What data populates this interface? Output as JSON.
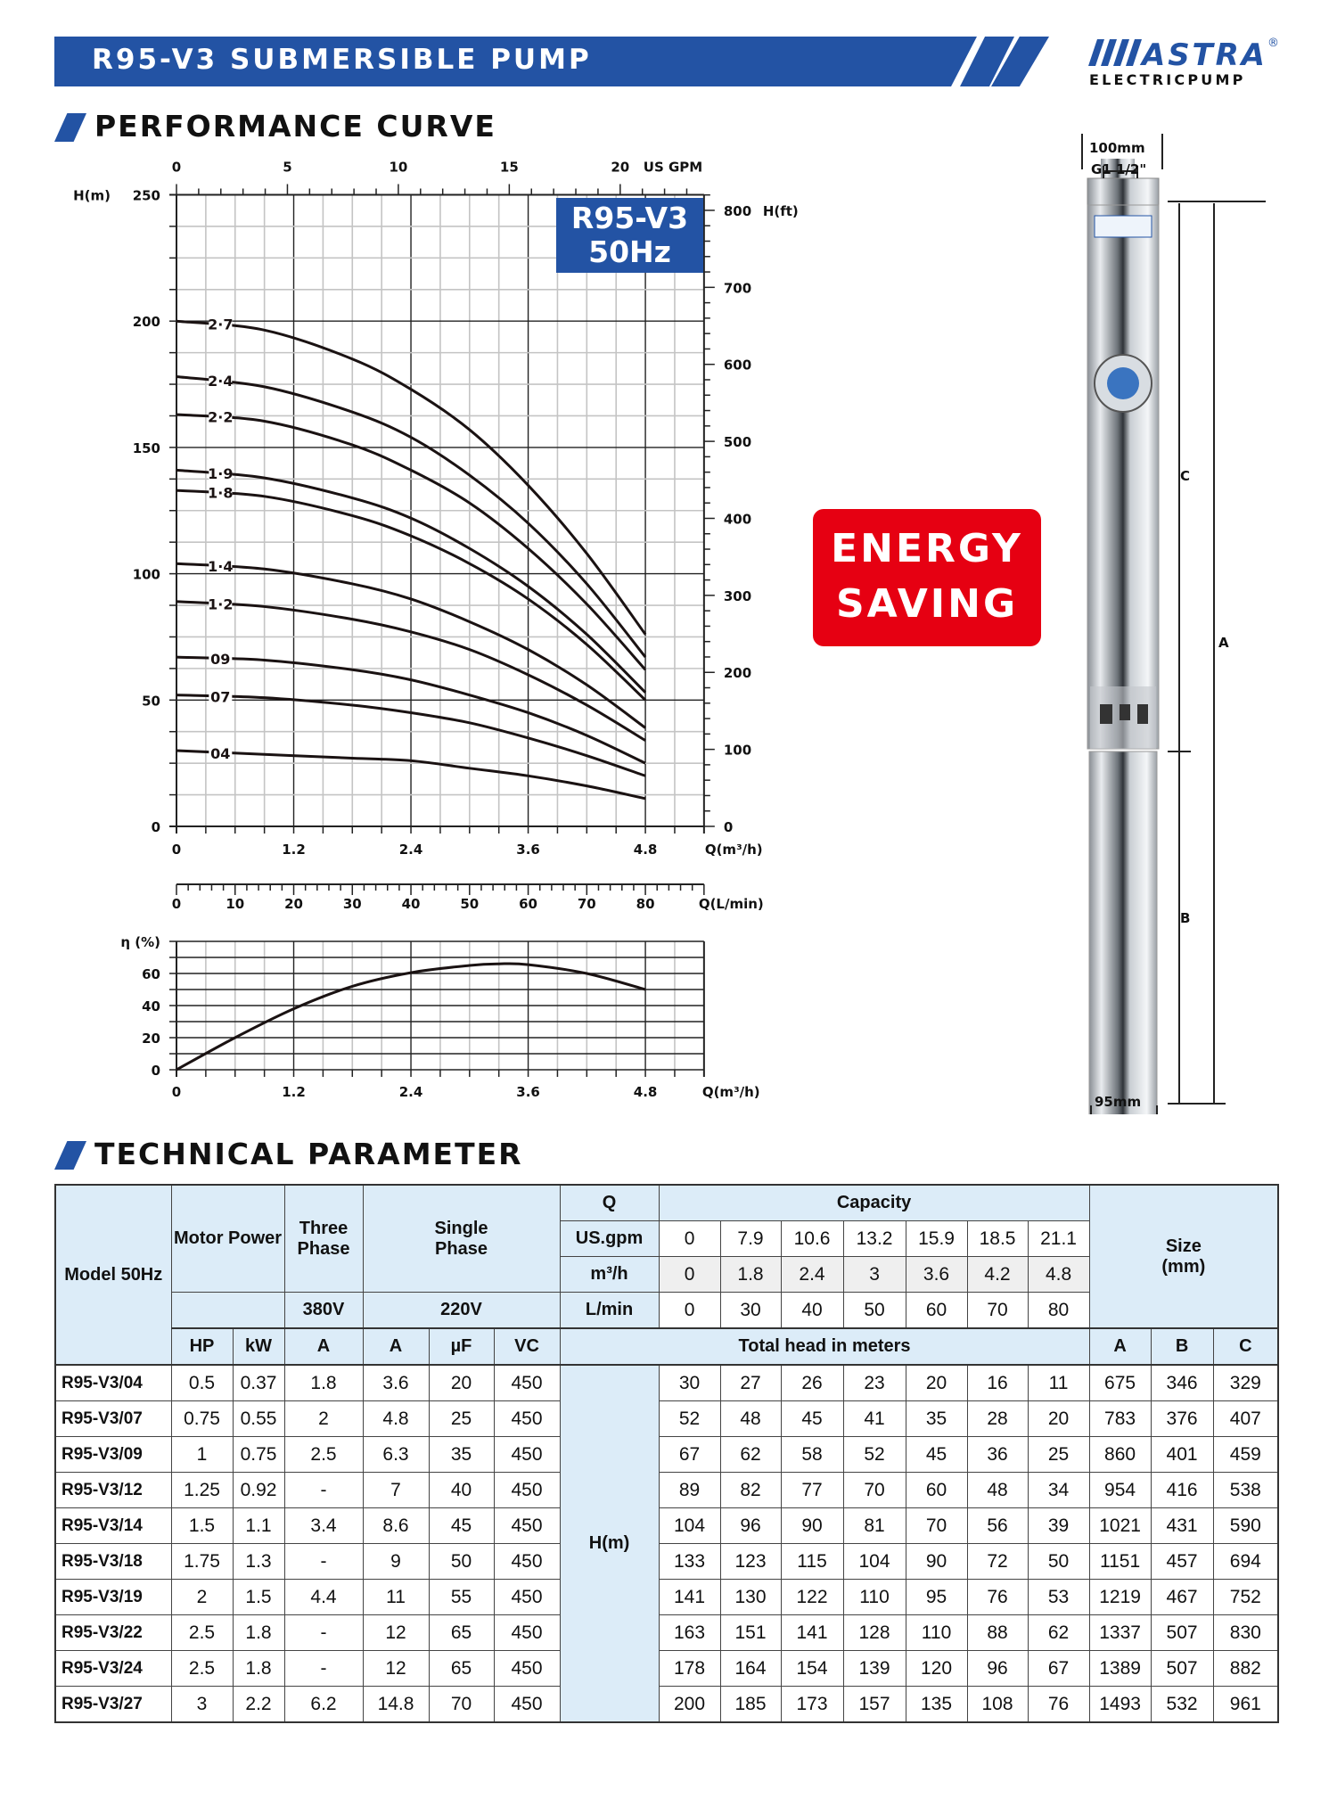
{
  "header": {
    "title": "R95-V3  SUBMERSIBLE  PUMP"
  },
  "logo": {
    "text": "MASTRA",
    "sub": "ELECTRICPUMP",
    "registered": "®"
  },
  "colors": {
    "brand_blue": "#2353a4",
    "energy_red": "#e60012",
    "header_cell": "#dcecf8"
  },
  "performance": {
    "title": "PERFORMANCE  CURVE"
  },
  "energy_badge": {
    "line1": "ENERGY",
    "line2": "SAVING"
  },
  "pump_dims": {
    "top_width": "100mm",
    "outlet": "G1 1/2\"",
    "bottom_width": "95mm",
    "A": "A",
    "B": "B",
    "C": "C"
  },
  "chart_data": [
    {
      "type": "line",
      "badge": [
        "R95-V3",
        "50Hz"
      ],
      "ylabel": "H(m)",
      "ylabel_right": "H(ft)",
      "xlabel": "Q(m³/h)",
      "xlabel_top": "US GPM",
      "xlabel_lmin": "Q(L/min)",
      "xlim": [
        0,
        5.4
      ],
      "ylim": [
        0,
        250
      ],
      "grid": true,
      "x_ticks": [
        0,
        1.2,
        2.4,
        3.6,
        4.8
      ],
      "y_ticks": [
        0,
        50,
        100,
        150,
        200,
        250
      ],
      "ft_ticks": [
        0,
        100,
        200,
        300,
        400,
        500,
        600,
        700,
        800
      ],
      "gpm_ticks": [
        0,
        5,
        10,
        15,
        20
      ],
      "lmin_ticks": [
        0,
        10,
        20,
        30,
        40,
        50,
        60,
        70,
        80
      ],
      "x": [
        0,
        1.8,
        2.4,
        3,
        3.6,
        4.2,
        4.8
      ],
      "series": [
        {
          "name": "2·7",
          "values": [
            200,
            185,
            173,
            157,
            135,
            108,
            76
          ]
        },
        {
          "name": "2·4",
          "values": [
            178,
            164,
            154,
            139,
            120,
            96,
            67
          ]
        },
        {
          "name": "2·2",
          "values": [
            163,
            151,
            141,
            128,
            110,
            88,
            62
          ]
        },
        {
          "name": "1·9",
          "values": [
            141,
            130,
            122,
            110,
            95,
            76,
            53
          ]
        },
        {
          "name": "1·8",
          "values": [
            133,
            123,
            115,
            104,
            90,
            72,
            50
          ]
        },
        {
          "name": "1·4",
          "values": [
            104,
            96,
            90,
            81,
            70,
            56,
            39
          ]
        },
        {
          "name": "1·2",
          "values": [
            89,
            82,
            77,
            70,
            60,
            48,
            34
          ]
        },
        {
          "name": "09",
          "values": [
            67,
            62,
            58,
            52,
            45,
            36,
            25
          ]
        },
        {
          "name": "07",
          "values": [
            52,
            48,
            45,
            41,
            35,
            28,
            20
          ]
        },
        {
          "name": "04",
          "values": [
            30,
            27,
            26,
            23,
            20,
            16,
            11
          ]
        }
      ]
    },
    {
      "type": "line",
      "ylabel": "η (%)",
      "xlabel": "Q(m³/h)",
      "xlim": [
        0,
        5.4
      ],
      "ylim": [
        0,
        80
      ],
      "grid": true,
      "x_ticks": [
        0,
        1.2,
        2.4,
        3.6,
        4.8
      ],
      "y_ticks": [
        0,
        20,
        40,
        60
      ],
      "x": [
        0,
        0.6,
        1.2,
        1.8,
        2.4,
        3.0,
        3.3,
        3.6,
        4.2,
        4.8
      ],
      "values": [
        0,
        20,
        38,
        52,
        60.5,
        65,
        66,
        65.5,
        60,
        50
      ]
    }
  ],
  "technical": {
    "title": "TECHNICAL  PARAMETER",
    "head": {
      "model": "Model 50Hz",
      "motor": "Motor Power",
      "three": "Three Phase",
      "single": "Single Phase",
      "q": "Q",
      "capacity": "Capacity",
      "size": "Size (mm)",
      "usgpm": "US.gpm",
      "m3h": "m³/h",
      "lmin": "L/min",
      "v380": "380V",
      "v220": "220V",
      "hp": "HP",
      "kw": "kW",
      "a3": "A",
      "a1": "A",
      "uf": "µF",
      "vc": "VC",
      "total_head": "Total head in meters",
      "sa": "A",
      "sb": "B",
      "sc": "C",
      "hm": "H(m)",
      "gpm_values": [
        "0",
        "7.9",
        "10.6",
        "13.2",
        "15.9",
        "18.5",
        "21.1"
      ],
      "m3h_values": [
        "0",
        "1.8",
        "2.4",
        "3",
        "3.6",
        "4.2",
        "4.8"
      ],
      "lmin_values": [
        "0",
        "30",
        "40",
        "50",
        "60",
        "70",
        "80"
      ]
    },
    "rows": [
      [
        "R95-V3/04",
        "0.5",
        "0.37",
        "1.8",
        "3.6",
        "20",
        "450",
        "30",
        "27",
        "26",
        "23",
        "20",
        "16",
        "11",
        "675",
        "346",
        "329"
      ],
      [
        "R95-V3/07",
        "0.75",
        "0.55",
        "2",
        "4.8",
        "25",
        "450",
        "52",
        "48",
        "45",
        "41",
        "35",
        "28",
        "20",
        "783",
        "376",
        "407"
      ],
      [
        "R95-V3/09",
        "1",
        "0.75",
        "2.5",
        "6.3",
        "35",
        "450",
        "67",
        "62",
        "58",
        "52",
        "45",
        "36",
        "25",
        "860",
        "401",
        "459"
      ],
      [
        "R95-V3/12",
        "1.25",
        "0.92",
        "-",
        "7",
        "40",
        "450",
        "89",
        "82",
        "77",
        "70",
        "60",
        "48",
        "34",
        "954",
        "416",
        "538"
      ],
      [
        "R95-V3/14",
        "1.5",
        "1.1",
        "3.4",
        "8.6",
        "45",
        "450",
        "104",
        "96",
        "90",
        "81",
        "70",
        "56",
        "39",
        "1021",
        "431",
        "590"
      ],
      [
        "R95-V3/18",
        "1.75",
        "1.3",
        "-",
        "9",
        "50",
        "450",
        "133",
        "123",
        "115",
        "104",
        "90",
        "72",
        "50",
        "1151",
        "457",
        "694"
      ],
      [
        "R95-V3/19",
        "2",
        "1.5",
        "4.4",
        "11",
        "55",
        "450",
        "141",
        "130",
        "122",
        "110",
        "95",
        "76",
        "53",
        "1219",
        "467",
        "752"
      ],
      [
        "R95-V3/22",
        "2.5",
        "1.8",
        "-",
        "12",
        "65",
        "450",
        "163",
        "151",
        "141",
        "128",
        "110",
        "88",
        "62",
        "1337",
        "507",
        "830"
      ],
      [
        "R95-V3/24",
        "2.5",
        "1.8",
        "-",
        "12",
        "65",
        "450",
        "178",
        "164",
        "154",
        "139",
        "120",
        "96",
        "67",
        "1389",
        "507",
        "882"
      ],
      [
        "R95-V3/27",
        "3",
        "2.2",
        "6.2",
        "14.8",
        "70",
        "450",
        "200",
        "185",
        "173",
        "157",
        "135",
        "108",
        "76",
        "1493",
        "532",
        "961"
      ]
    ]
  }
}
